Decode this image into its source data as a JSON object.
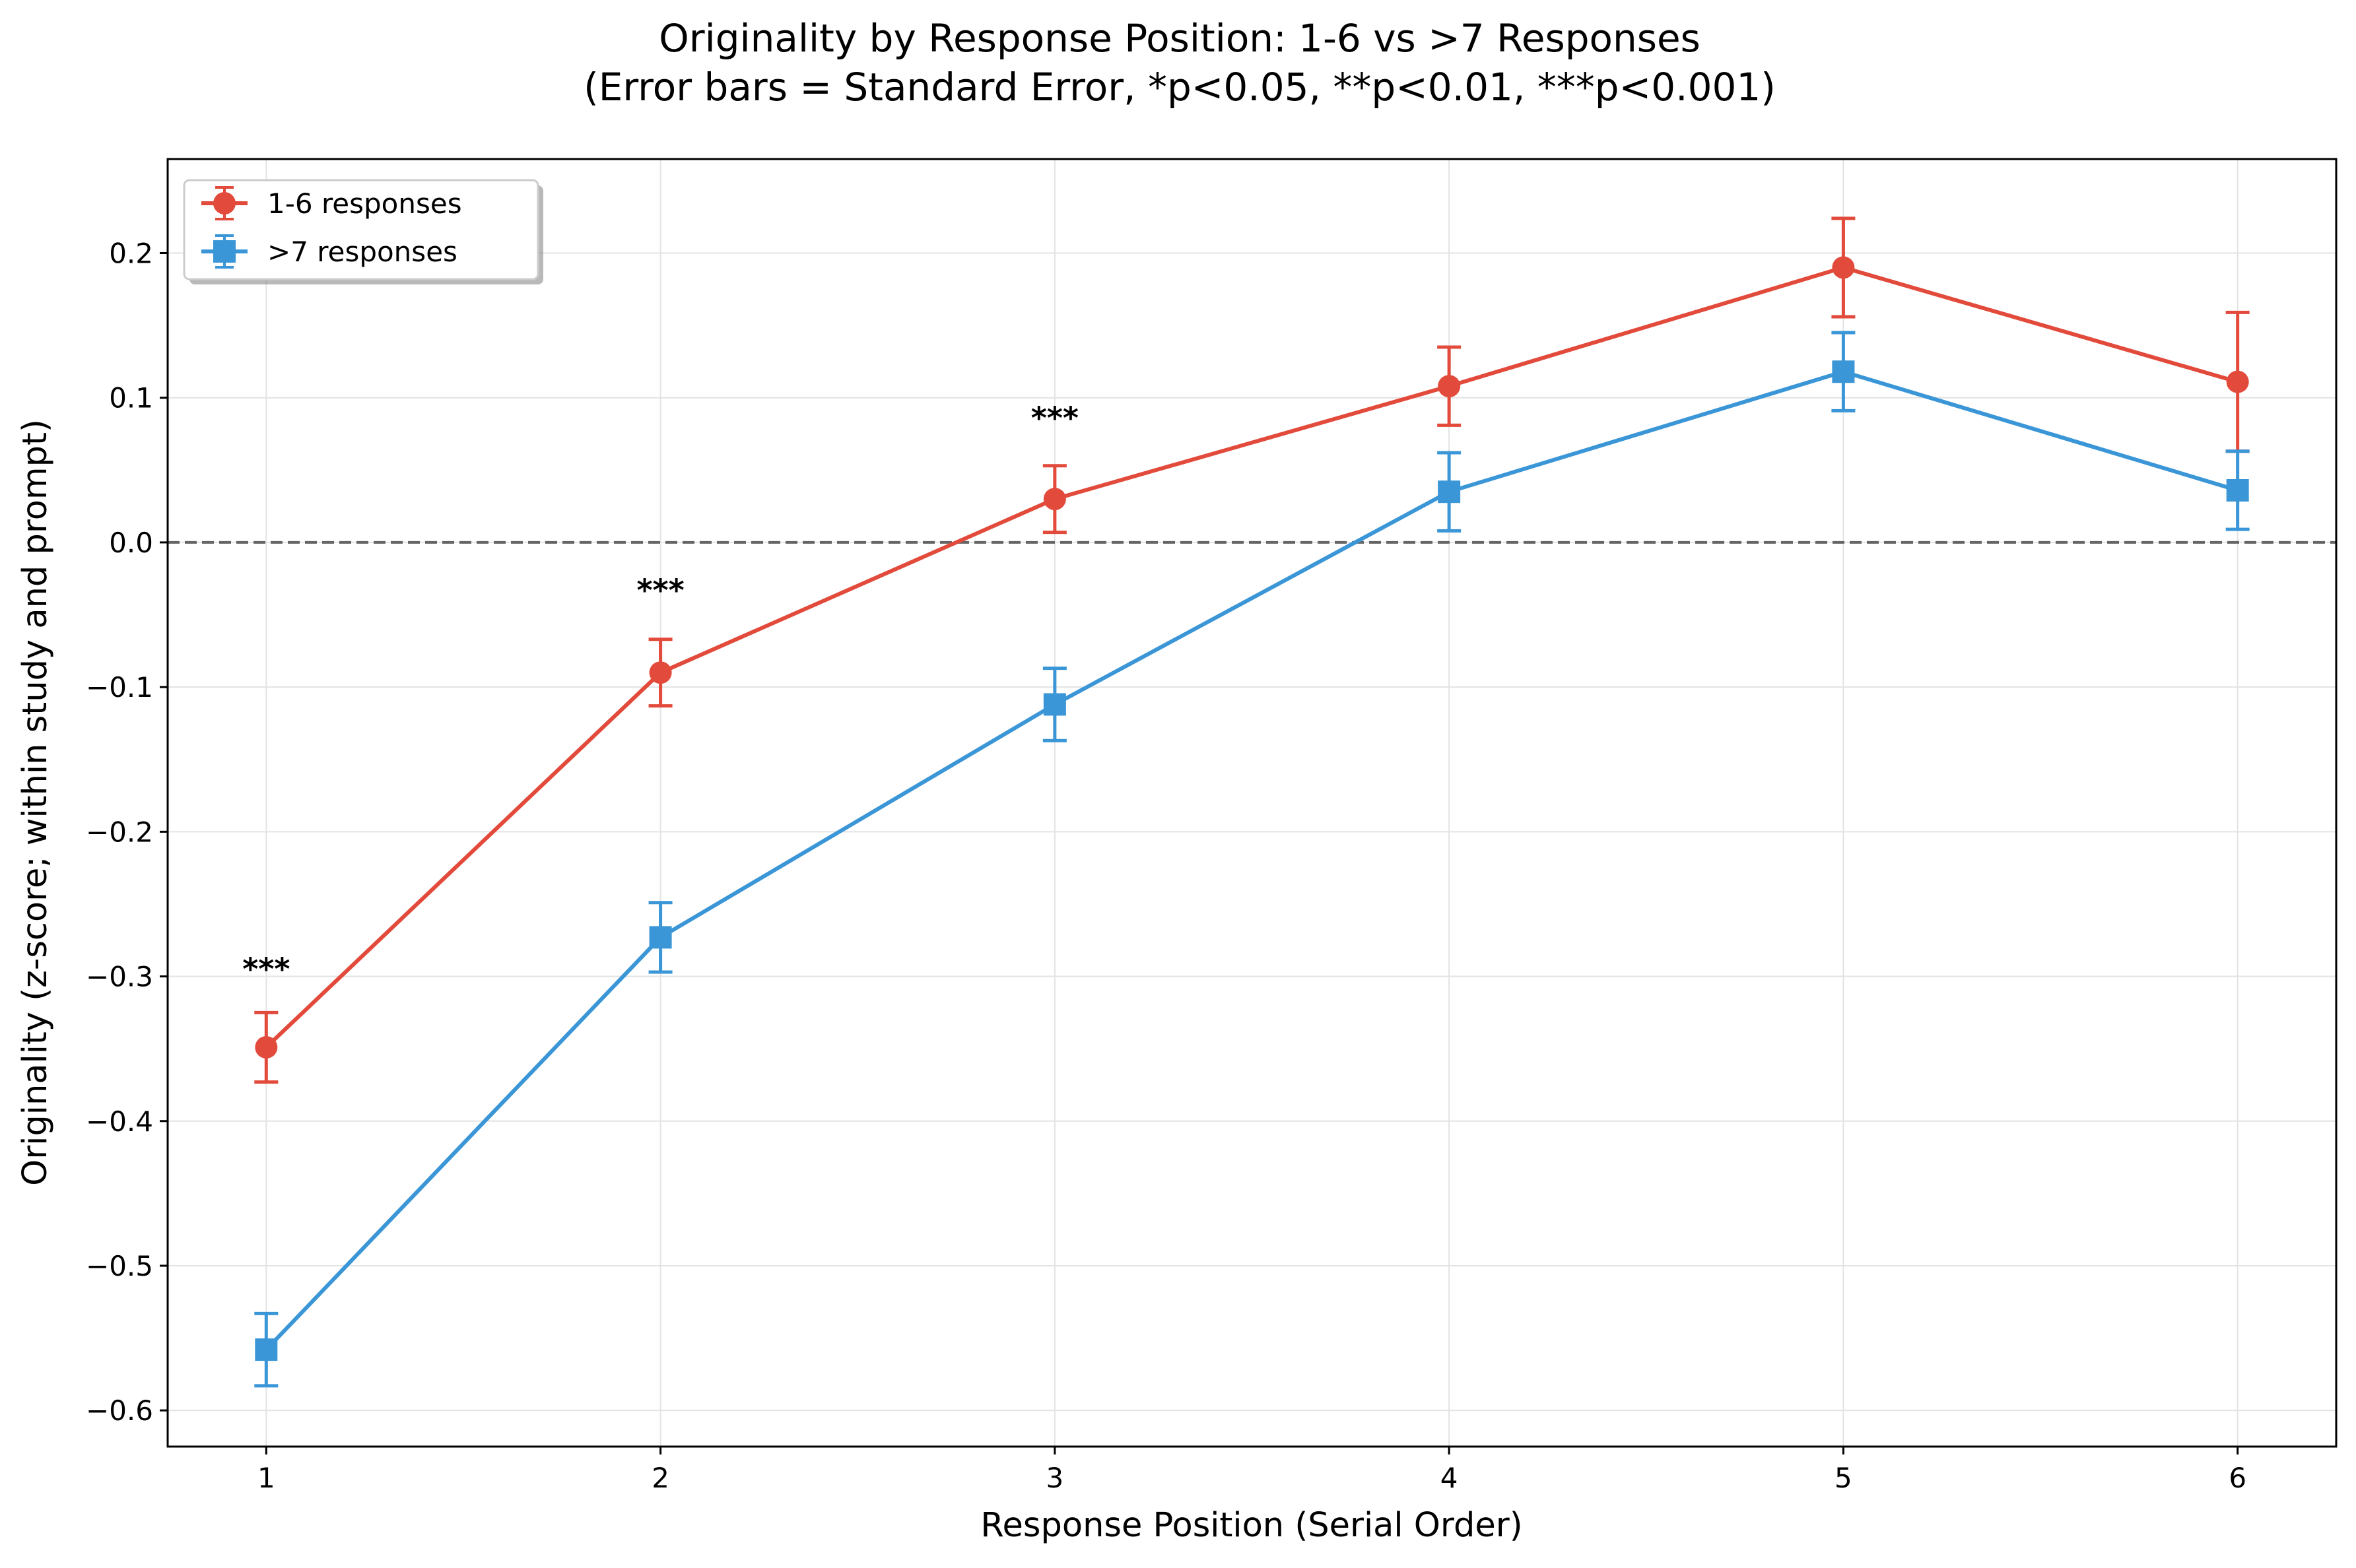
{
  "chart_data": {
    "type": "line",
    "title": "Originality by Response Position: 1-6 vs >7 Responses",
    "subtitle": "(Error bars = Standard Error, *p<0.05, **p<0.01, ***p<0.001)",
    "xlabel": "Response Position (Serial Order)",
    "ylabel": "Originality (z-score; within study and prompt)",
    "x": [
      1,
      2,
      3,
      4,
      5,
      6
    ],
    "xlim": [
      0.75,
      6.25
    ],
    "ylim": [
      -0.625,
      0.265
    ],
    "xticks": [
      1,
      2,
      3,
      4,
      5,
      6
    ],
    "yticks": [
      -0.6,
      -0.5,
      -0.4,
      -0.3,
      -0.2,
      -0.1,
      0.0,
      0.1,
      0.2
    ],
    "ytick_labels": [
      "−0.6",
      "−0.5",
      "−0.4",
      "−0.3",
      "−0.2",
      "−0.1",
      "0.0",
      "0.1",
      "0.2"
    ],
    "grid": true,
    "reference_line": {
      "y": 0.0,
      "style": "dashed",
      "color": "#666666"
    },
    "legend": {
      "placement": "top-left"
    },
    "series": [
      {
        "name": "1-6 responses",
        "color": "#e24a3b",
        "marker": "circle",
        "values": [
          -0.349,
          -0.09,
          0.03,
          0.108,
          0.19,
          0.111
        ],
        "errors": [
          0.024,
          0.023,
          0.023,
          0.027,
          0.034,
          0.048
        ]
      },
      {
        "name": ">7 responses",
        "color": "#3a96d6",
        "marker": "square",
        "values": [
          -0.558,
          -0.273,
          -0.112,
          0.035,
          0.118,
          0.036
        ],
        "errors": [
          0.025,
          0.024,
          0.025,
          0.027,
          0.027,
          0.027
        ]
      }
    ],
    "annotations": [
      {
        "x": 1,
        "y": -0.295,
        "text": "***"
      },
      {
        "x": 2,
        "y": -0.033,
        "text": "***"
      },
      {
        "x": 3,
        "y": 0.086,
        "text": "***"
      }
    ]
  }
}
